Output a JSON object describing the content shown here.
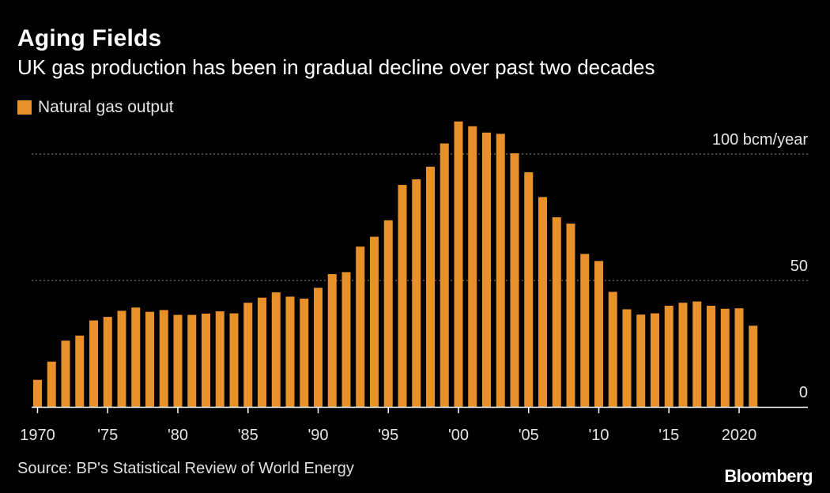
{
  "header": {
    "title": "Aging Fields",
    "subtitle": "UK gas production has been in gradual decline over past two decades"
  },
  "legend": {
    "label": "Natural gas output",
    "color": "#E8912B"
  },
  "footer": {
    "source": "Source: BP's Statistical Review of World Energy",
    "brand": "Bloomberg"
  },
  "colors": {
    "background": "#000000",
    "bar": "#E8912B",
    "grid": "#8a8a8a",
    "text": "#ffffff"
  },
  "chart_data": {
    "type": "bar",
    "title": "Aging Fields",
    "subtitle": "UK gas production has been in gradual decline over past two decades",
    "ylabel": "",
    "xlabel": "",
    "ylim": [
      0,
      115
    ],
    "grid": true,
    "legend_position": "top-left",
    "y_ticks": [
      {
        "value": 0,
        "label": "0"
      },
      {
        "value": 50,
        "label": "50"
      },
      {
        "value": 100,
        "label": "100 bcm/year"
      }
    ],
    "x_ticks": [
      {
        "year": 1970,
        "label": "1970"
      },
      {
        "year": 1975,
        "label": "'75"
      },
      {
        "year": 1980,
        "label": "'80"
      },
      {
        "year": 1985,
        "label": "'85"
      },
      {
        "year": 1990,
        "label": "'90"
      },
      {
        "year": 1995,
        "label": "'95"
      },
      {
        "year": 2000,
        "label": "'00"
      },
      {
        "year": 2005,
        "label": "'05"
      },
      {
        "year": 2010,
        "label": "'10"
      },
      {
        "year": 2015,
        "label": "'15"
      },
      {
        "year": 2020,
        "label": "2020"
      }
    ],
    "x_domain": [
      1970,
      2024
    ],
    "series": [
      {
        "name": "Natural gas output",
        "x": [
          1970,
          1971,
          1972,
          1973,
          1974,
          1975,
          1976,
          1977,
          1978,
          1979,
          1980,
          1981,
          1982,
          1983,
          1984,
          1985,
          1986,
          1987,
          1988,
          1989,
          1990,
          1991,
          1992,
          1993,
          1994,
          1995,
          1996,
          1997,
          1998,
          1999,
          2000,
          2001,
          2002,
          2003,
          2004,
          2005,
          2006,
          2007,
          2008,
          2009,
          2010,
          2011,
          2012,
          2013,
          2014,
          2015,
          2016,
          2017,
          2018,
          2019,
          2020,
          2021
        ],
        "values": [
          10.7,
          17.9,
          26.2,
          28.2,
          34.2,
          35.6,
          38.0,
          39.3,
          37.6,
          38.3,
          36.4,
          36.4,
          36.9,
          37.8,
          37.0,
          41.2,
          43.2,
          45.3,
          43.6,
          42.8,
          47.1,
          52.5,
          53.3,
          63.4,
          67.3,
          73.8,
          87.8,
          90.0,
          95.0,
          104.2,
          112.9,
          111.0,
          108.5,
          108.0,
          100.3,
          92.8,
          83.0,
          75.0,
          72.5,
          60.5,
          57.7,
          45.5,
          38.6,
          36.5,
          37.0,
          40.0,
          41.2,
          41.7,
          40.0,
          38.8,
          39.0,
          32.1
        ]
      }
    ]
  }
}
